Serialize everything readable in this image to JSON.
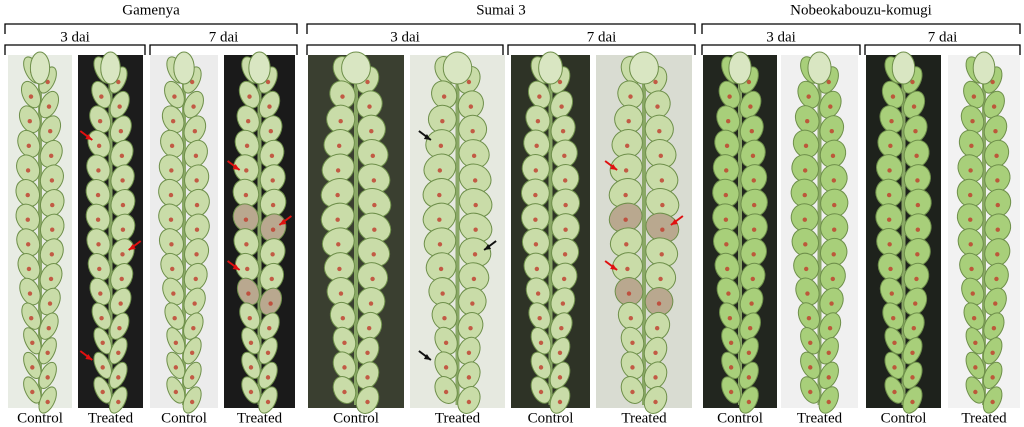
{
  "groups": [
    {
      "name": "Gamenya",
      "timepoints": [
        {
          "label": "3 dai",
          "panels": [
            "Control",
            "Treated"
          ]
        },
        {
          "label": "7 dai",
          "panels": [
            "Control",
            "Treated"
          ]
        }
      ]
    },
    {
      "name": "Sumai 3",
      "timepoints": [
        {
          "label": "3 dai",
          "panels": [
            "Control",
            "Treated"
          ]
        },
        {
          "label": "7 dai",
          "panels": [
            "Control",
            "Treated"
          ]
        }
      ]
    },
    {
      "name": "Nobeokabouzu-komugi",
      "timepoints": [
        {
          "label": "3 dai",
          "panels": [
            "Control",
            "Treated"
          ]
        },
        {
          "label": "7 dai",
          "panels": [
            "Control",
            "Treated"
          ]
        }
      ]
    }
  ]
}
